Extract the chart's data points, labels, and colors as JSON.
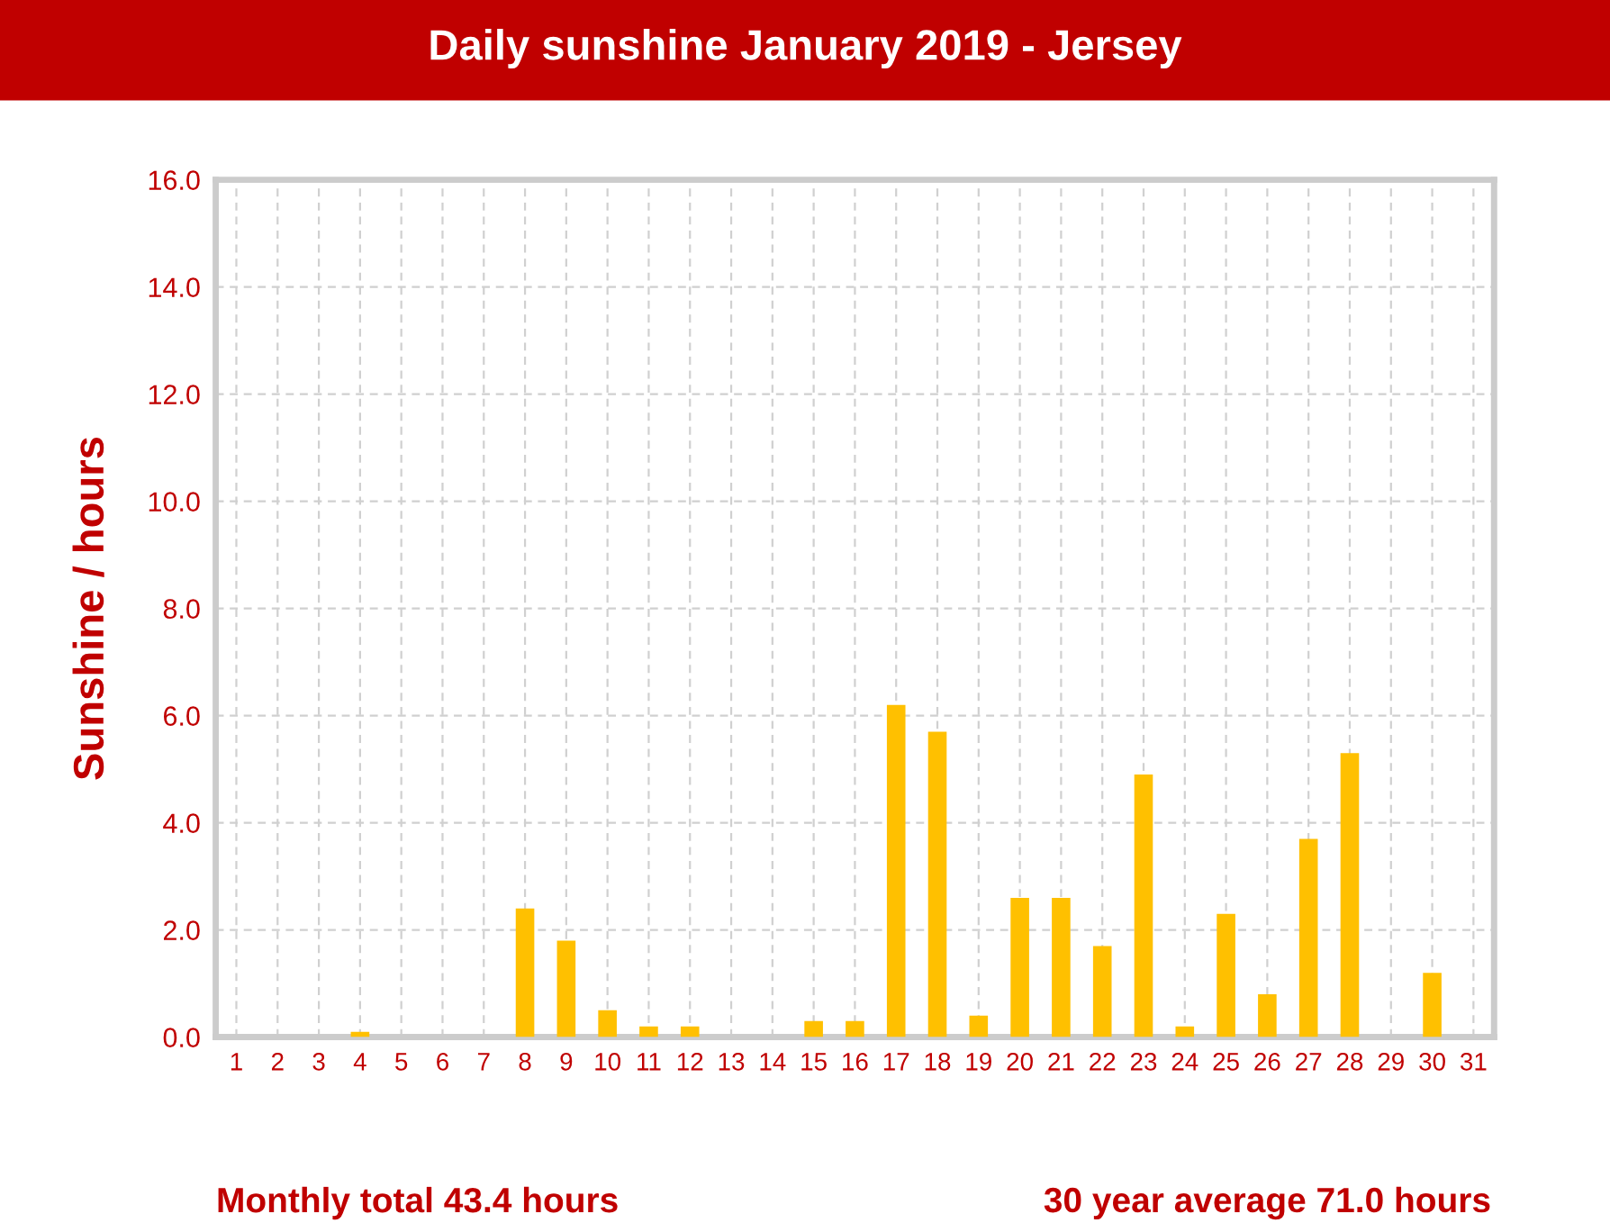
{
  "chart_data": {
    "type": "bar",
    "title": "Daily sunshine January 2019 - Jersey",
    "ylabel": "Sunshine / hours",
    "categories": [
      "1",
      "2",
      "3",
      "4",
      "5",
      "6",
      "7",
      "8",
      "9",
      "10",
      "11",
      "12",
      "13",
      "14",
      "15",
      "16",
      "17",
      "18",
      "19",
      "20",
      "21",
      "22",
      "23",
      "24",
      "25",
      "26",
      "27",
      "28",
      "29",
      "30",
      "31"
    ],
    "values": [
      0,
      0,
      0,
      0.1,
      0,
      0,
      0,
      2.4,
      1.8,
      0.5,
      0.2,
      0.2,
      0,
      0,
      0.3,
      0.3,
      6.2,
      5.7,
      0.4,
      2.6,
      2.6,
      1.7,
      4.9,
      0.2,
      2.3,
      0.8,
      3.7,
      5.3,
      0,
      1.2,
      0
    ],
    "color": "#ffc000",
    "ylim": [
      0,
      16
    ],
    "yticks": [
      {
        "value": 0,
        "label": "0.0"
      },
      {
        "value": 2,
        "label": "2.0"
      },
      {
        "value": 4,
        "label": "4.0"
      },
      {
        "value": 6,
        "label": "6.0"
      },
      {
        "value": 8,
        "label": "8.0"
      },
      {
        "value": 10,
        "label": "10.0"
      },
      {
        "value": 12,
        "label": "12.0"
      },
      {
        "value": 14,
        "label": "14.0"
      },
      {
        "value": 16,
        "label": "16.0"
      }
    ],
    "grid": true,
    "legend": false,
    "annotations": [
      "Monthly total 43.4 hours",
      "30 year average 71.0 hours"
    ]
  }
}
